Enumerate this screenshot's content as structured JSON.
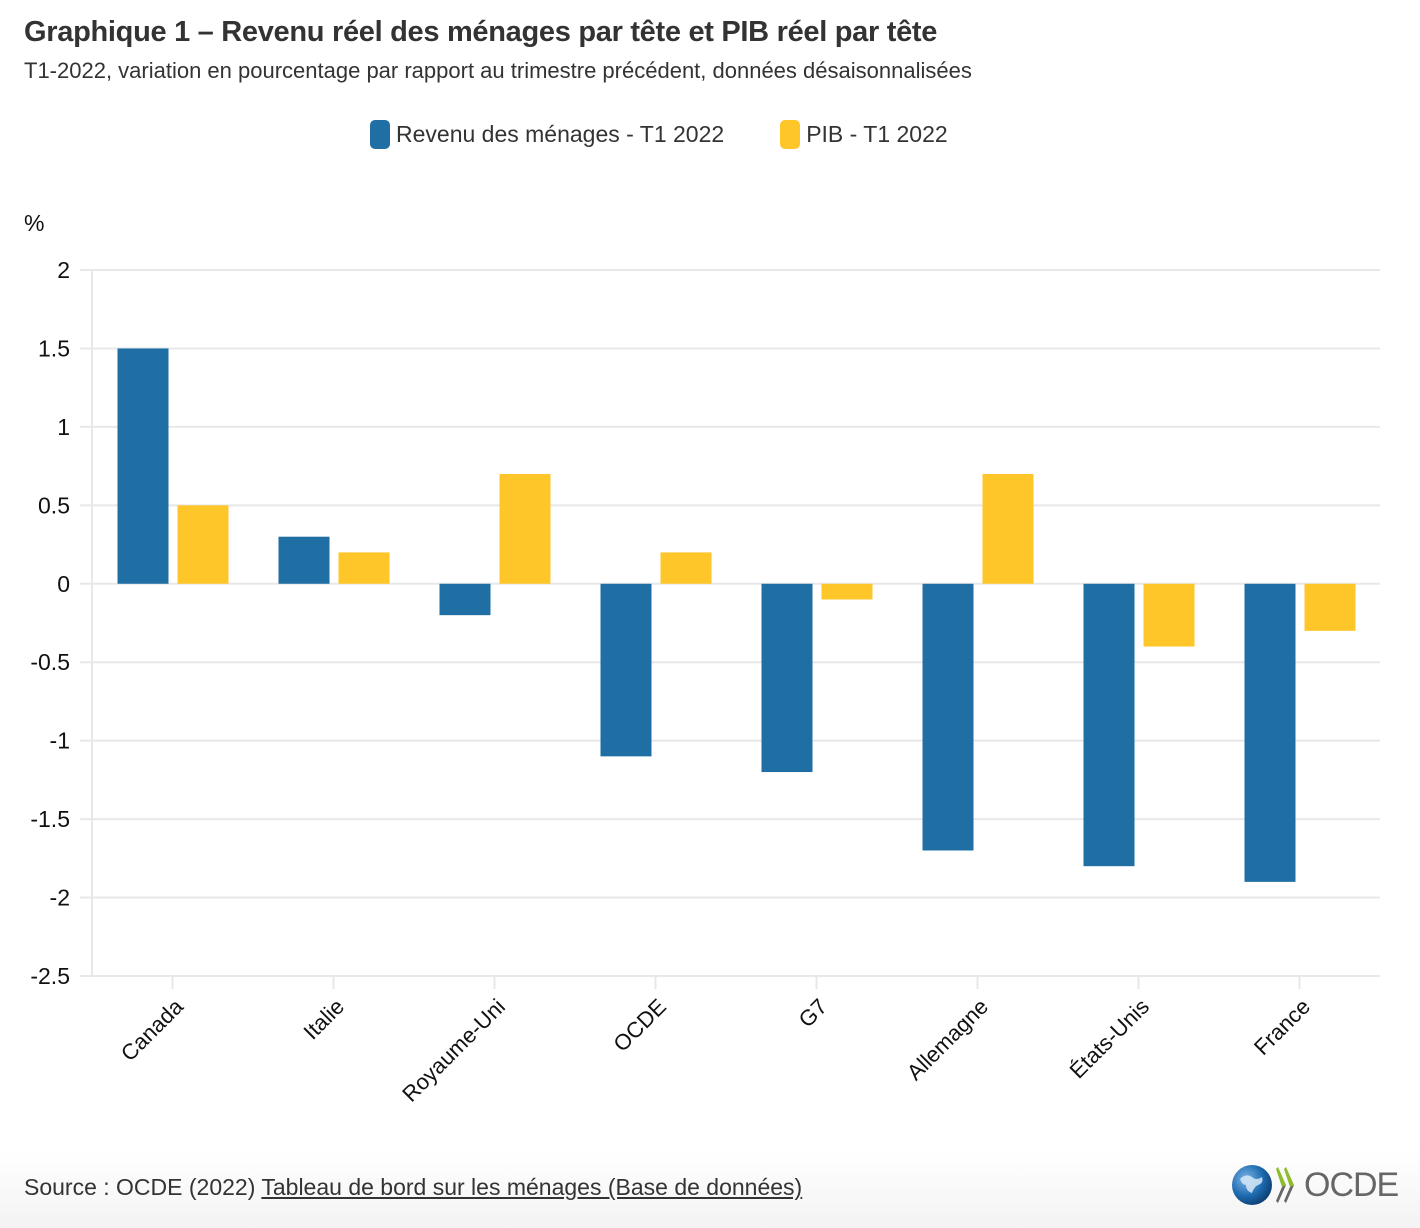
{
  "header": {
    "title": "Graphique 1 – Revenu réel des ménages par tête et PIB réel par tête",
    "subtitle": "T1-2022, variation en pourcentage par rapport au trimestre précédent, données désaisonnalisées"
  },
  "legend": [
    {
      "label": "Revenu des ménages - T1 2022",
      "color": "#1f6fa4"
    },
    {
      "label": "PIB - T1 2022",
      "color": "#ffc629"
    }
  ],
  "footer": {
    "source_prefix": "Source : OCDE (2022) ",
    "source_link": "Tableau de bord sur les ménages (Base de données)",
    "logo_text": "OCDE"
  },
  "chart_data": {
    "type": "bar",
    "title": "Graphique 1 – Revenu réel des ménages par tête et PIB réel par tête",
    "subtitle": "T1-2022, variation en pourcentage par rapport au trimestre précédent, données désaisonnalisées",
    "xlabel": "",
    "ylabel": "%",
    "ylim": [
      -2.5,
      2
    ],
    "yticks": [
      2,
      1.5,
      1,
      0.5,
      0,
      -0.5,
      -1,
      -1.5,
      -2,
      -2.5
    ],
    "ytick_labels": [
      "2",
      "1.5",
      "1",
      "0.5",
      "0",
      "-0.5",
      "-1",
      "-1.5",
      "-2",
      "-2.5"
    ],
    "grid": true,
    "legend_position": "top-center",
    "categories": [
      "Canada",
      "Italie",
      "Royaume-Uni",
      "OCDE",
      "G7",
      "Allemagne",
      "États-Unis",
      "France"
    ],
    "series": [
      {
        "name": "Revenu des ménages - T1 2022",
        "color": "#1f6fa4",
        "values": [
          1.5,
          0.3,
          -0.2,
          -1.1,
          -1.2,
          -1.7,
          -1.8,
          -1.9
        ]
      },
      {
        "name": "PIB - T1 2022",
        "color": "#ffc629",
        "values": [
          0.5,
          0.2,
          0.7,
          0.2,
          -0.1,
          0.7,
          -0.4,
          -0.3
        ]
      }
    ]
  }
}
